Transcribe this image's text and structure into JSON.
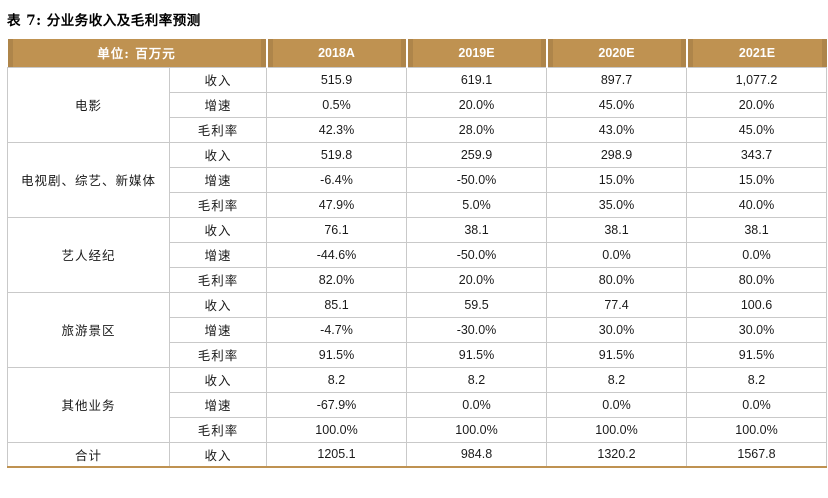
{
  "title": "表 7: 分业务收入及毛利率预测",
  "colors": {
    "header_gold": "#bf9251",
    "header_gold_dark": "#ae854a",
    "border_gray": "#c9c9c9",
    "bottom_border_gold": "#bf9251",
    "header_text": "#ffffff",
    "body_text": "#1a1a1a"
  },
  "table": {
    "unit_label": "单位: 百万元",
    "year_headers": [
      "2018A",
      "2019E",
      "2020E",
      "2021E"
    ],
    "groups": [
      {
        "name": "电影",
        "rows": [
          {
            "metric": "收入",
            "values": [
              "515.9",
              "619.1",
              "897.7",
              "1,077.2"
            ]
          },
          {
            "metric": "增速",
            "values": [
              "0.5%",
              "20.0%",
              "45.0%",
              "20.0%"
            ]
          },
          {
            "metric": "毛利率",
            "values": [
              "42.3%",
              "28.0%",
              "43.0%",
              "45.0%"
            ]
          }
        ]
      },
      {
        "name": "电视剧、综艺、新媒体",
        "rows": [
          {
            "metric": "收入",
            "values": [
              "519.8",
              "259.9",
              "298.9",
              "343.7"
            ]
          },
          {
            "metric": "增速",
            "values": [
              "-6.4%",
              "-50.0%",
              "15.0%",
              "15.0%"
            ]
          },
          {
            "metric": "毛利率",
            "values": [
              "47.9%",
              "5.0%",
              "35.0%",
              "40.0%"
            ]
          }
        ]
      },
      {
        "name": "艺人经纪",
        "rows": [
          {
            "metric": "收入",
            "values": [
              "76.1",
              "38.1",
              "38.1",
              "38.1"
            ]
          },
          {
            "metric": "增速",
            "values": [
              "-44.6%",
              "-50.0%",
              "0.0%",
              "0.0%"
            ]
          },
          {
            "metric": "毛利率",
            "values": [
              "82.0%",
              "20.0%",
              "80.0%",
              "80.0%"
            ]
          }
        ]
      },
      {
        "name": "旅游景区",
        "rows": [
          {
            "metric": "收入",
            "values": [
              "85.1",
              "59.5",
              "77.4",
              "100.6"
            ]
          },
          {
            "metric": "增速",
            "values": [
              "-4.7%",
              "-30.0%",
              "30.0%",
              "30.0%"
            ]
          },
          {
            "metric": "毛利率",
            "values": [
              "91.5%",
              "91.5%",
              "91.5%",
              "91.5%"
            ]
          }
        ]
      },
      {
        "name": "其他业务",
        "rows": [
          {
            "metric": "收入",
            "values": [
              "8.2",
              "8.2",
              "8.2",
              "8.2"
            ]
          },
          {
            "metric": "增速",
            "values": [
              "-67.9%",
              "0.0%",
              "0.0%",
              "0.0%"
            ]
          },
          {
            "metric": "毛利率",
            "values": [
              "100.0%",
              "100.0%",
              "100.0%",
              "100.0%"
            ]
          }
        ]
      }
    ],
    "total": {
      "name": "合计",
      "metric": "收入",
      "values": [
        "1205.1",
        "984.8",
        "1320.2",
        "1567.8"
      ]
    }
  }
}
